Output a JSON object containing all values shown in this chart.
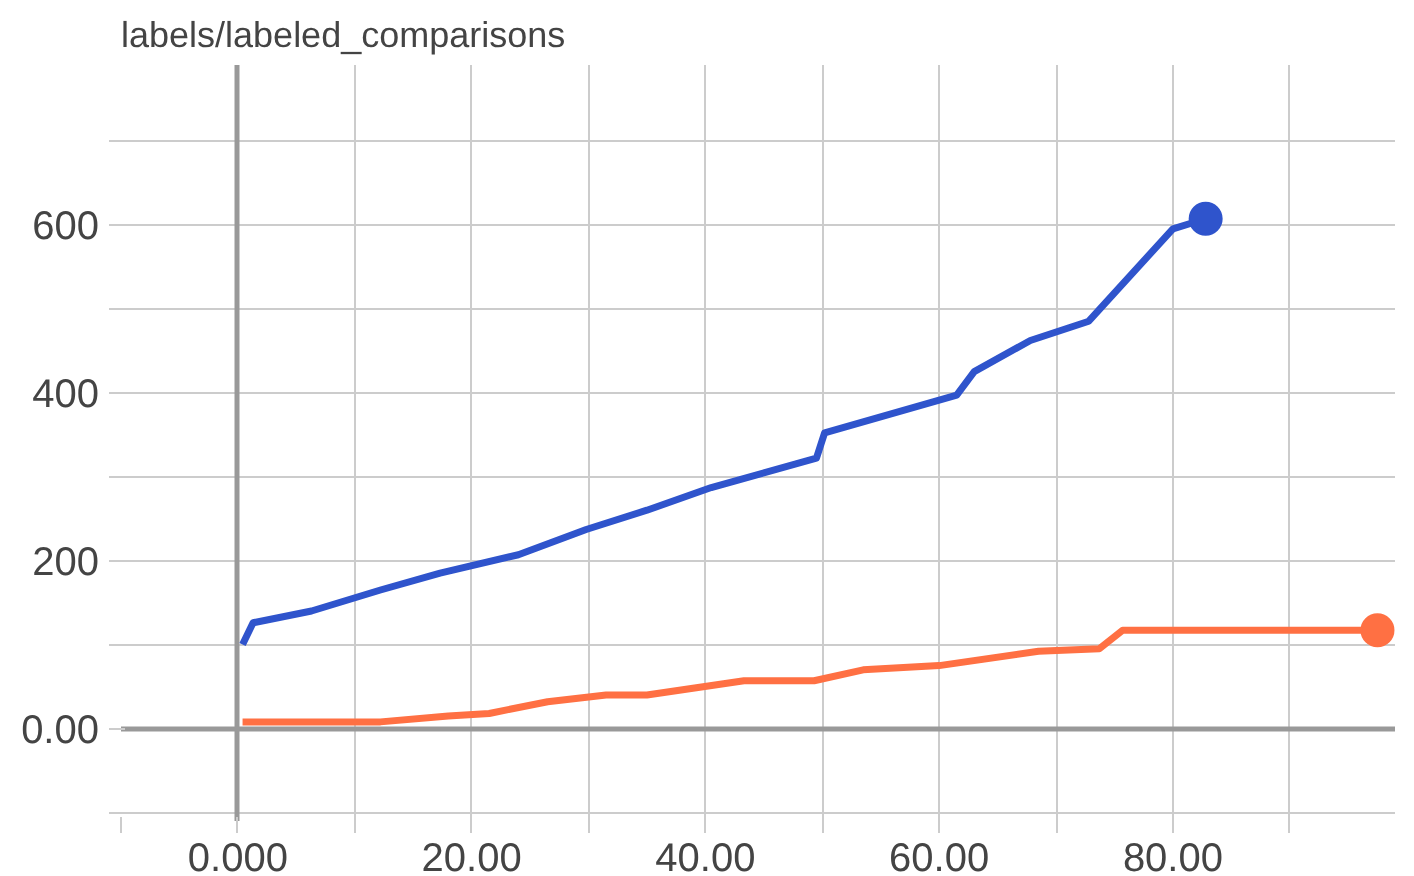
{
  "chart_data": {
    "type": "line",
    "title": "labels/labeled_comparisons",
    "xlim": [
      -10,
      99
    ],
    "ylim": [
      -110,
      790
    ],
    "xticks": [
      {
        "value": -10,
        "label": null
      },
      {
        "value": 0,
        "label": "0.000"
      },
      {
        "value": 10,
        "label": null
      },
      {
        "value": 20,
        "label": "20.00"
      },
      {
        "value": 30,
        "label": null
      },
      {
        "value": 40,
        "label": "40.00"
      },
      {
        "value": 50,
        "label": null
      },
      {
        "value": 60,
        "label": "60.00"
      },
      {
        "value": 70,
        "label": null
      },
      {
        "value": 80,
        "label": "80.00"
      },
      {
        "value": 90,
        "label": null
      }
    ],
    "yticks": [
      {
        "value": -100,
        "label": null
      },
      {
        "value": 0,
        "label": "0.00"
      },
      {
        "value": 100,
        "label": null
      },
      {
        "value": 200,
        "label": "200"
      },
      {
        "value": 300,
        "label": null
      },
      {
        "value": 400,
        "label": "400"
      },
      {
        "value": 500,
        "label": null
      },
      {
        "value": 600,
        "label": "600"
      },
      {
        "value": 700,
        "label": null
      }
    ],
    "grid": true,
    "line_style": "solid",
    "series": [
      {
        "color": "#2f54cc",
        "x": [
          0.4,
          1.3,
          6.3,
          12.2,
          17.3,
          24,
          29.8,
          35,
          40.5,
          49.5,
          50.2,
          61.5,
          63,
          67.8,
          72.8,
          80,
          82.8
        ],
        "values": [
          100,
          126,
          140,
          165,
          185,
          207,
          237,
          260,
          287,
          322,
          352,
          397,
          425,
          462,
          485,
          595,
          607
        ]
      },
      {
        "color": "#ff7043",
        "x": [
          0.4,
          12.2,
          18,
          21.5,
          26.5,
          31.5,
          35,
          43.3,
          49.3,
          53.5,
          60,
          68.5,
          73.7,
          75.7,
          97.5
        ],
        "values": [
          8,
          8,
          15,
          18,
          32,
          40,
          40,
          57,
          57,
          70,
          75,
          92,
          95,
          117,
          117
        ]
      },
      {
        "type": "scatter",
        "marker": "circle",
        "color": "#2f54cc",
        "x": [
          82.8
        ],
        "values": [
          607
        ]
      },
      {
        "type": "scatter",
        "marker": "circle",
        "color": "#ff7043",
        "x": [
          97.5
        ],
        "values": [
          117
        ]
      }
    ]
  }
}
